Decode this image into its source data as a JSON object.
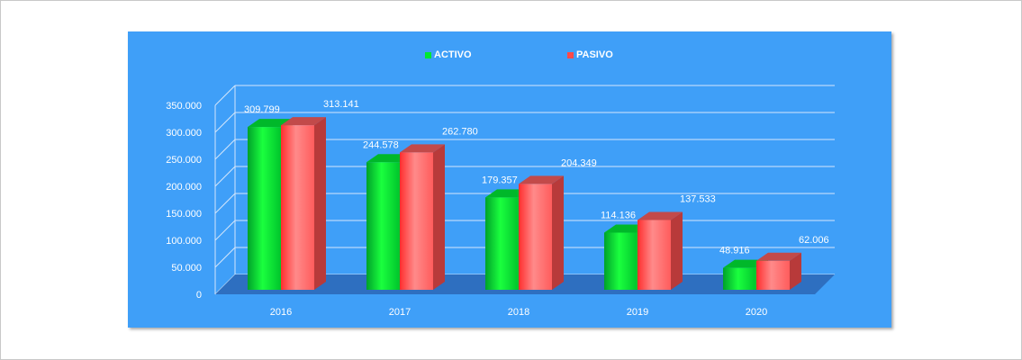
{
  "chart_data": {
    "type": "bar",
    "style": "3d-clustered-column",
    "categories": [
      "2016",
      "2017",
      "2018",
      "2019",
      "2020"
    ],
    "series": [
      {
        "name": "ACTIVO",
        "color": "#00e832",
        "values": [
          309.799,
          244.578,
          179.357,
          114.136,
          48.916
        ],
        "labels": [
          "309.799",
          "244.578",
          "179.357",
          "114.136",
          "48.916"
        ]
      },
      {
        "name": "PASIVO",
        "color": "#ff4a4a",
        "values": [
          313.141,
          262.78,
          204.349,
          137.533,
          62.006
        ],
        "labels": [
          "313.141",
          "262.780",
          "204.349",
          "137.533",
          "62.006"
        ]
      }
    ],
    "y_ticks": [
      "0",
      "50.000",
      "100.000",
      "150.000",
      "200.000",
      "250.000",
      "300.000",
      "350.000"
    ],
    "ylim": [
      0,
      350
    ],
    "title": "",
    "xlabel": "",
    "ylabel": "",
    "legend_position": "top",
    "grid": true,
    "background_color": "#3f9ff8",
    "floor_color": "#2e6fc0",
    "text_color": "#ffffff"
  }
}
